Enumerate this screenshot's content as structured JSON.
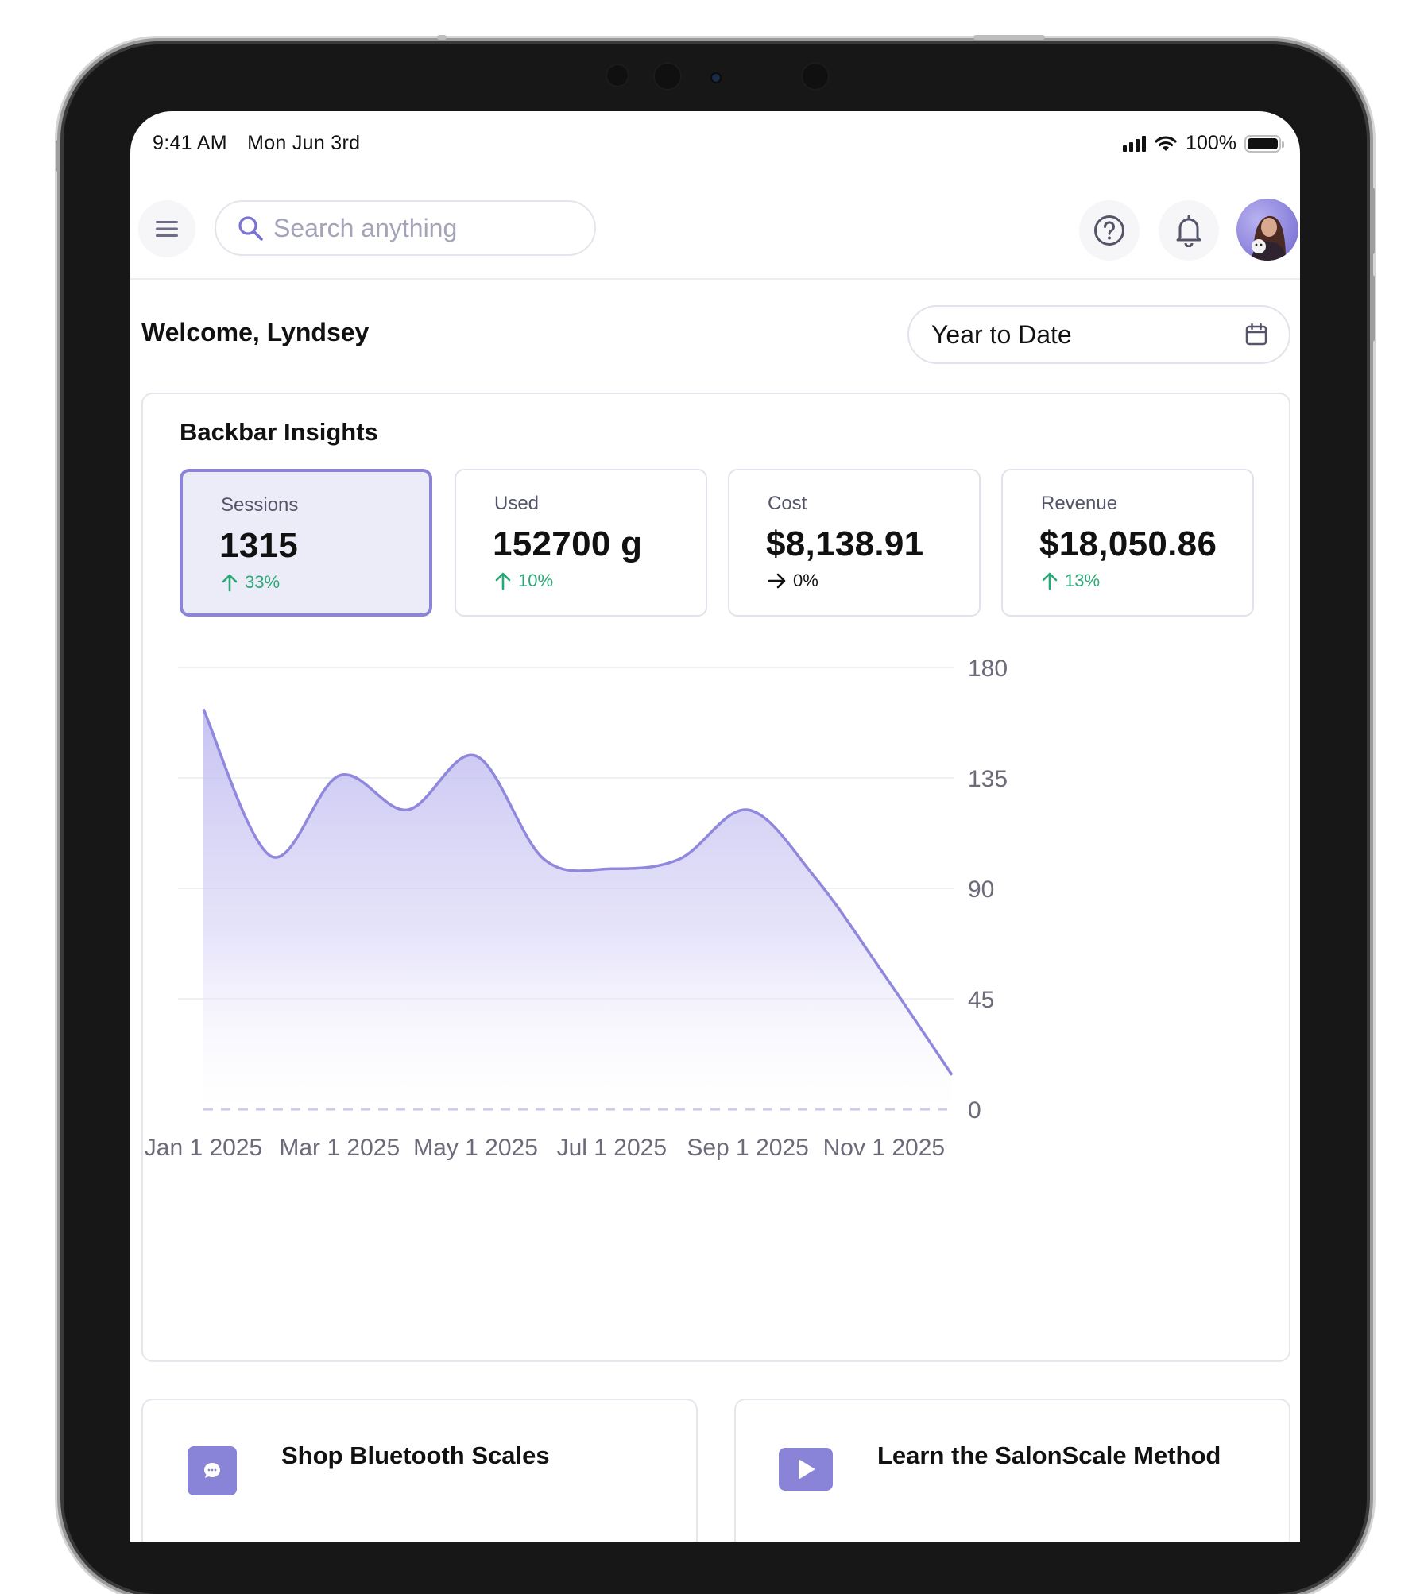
{
  "status_bar": {
    "time": "9:41 AM",
    "date": "Mon Jun 3rd",
    "battery": "100%"
  },
  "toolbar": {
    "search_placeholder": "Search anything",
    "icons": [
      "menu-icon",
      "search-icon",
      "help-icon",
      "bell-icon"
    ]
  },
  "header": {
    "welcome": "Welcome, Lyndsey",
    "date_range": "Year to Date"
  },
  "insights": {
    "title": "Backbar Insights",
    "stats": [
      {
        "label": "Sessions",
        "value": "1315",
        "delta": "33%",
        "trend": "up",
        "active": true
      },
      {
        "label": "Used",
        "value": "152700 g",
        "delta": "10%",
        "trend": "up",
        "active": false
      },
      {
        "label": "Cost",
        "value": "$8,138.91",
        "delta": "0%",
        "trend": "flat",
        "active": false
      },
      {
        "label": "Revenue",
        "value": "$18,050.86",
        "delta": "13%",
        "trend": "up",
        "active": false
      }
    ]
  },
  "chart_data": {
    "type": "area",
    "title": "",
    "xlabel": "",
    "ylabel": "",
    "x_tick_labels": [
      "Jan 1 2025",
      "Mar 1 2025",
      "May 1 2025",
      "Jul 1 2025",
      "Sep 1 2025",
      "Nov 1 2025"
    ],
    "y_tick_labels": [
      "180",
      "135",
      "90",
      "45",
      "0"
    ],
    "ylim": [
      0,
      180
    ],
    "y_axis_side": "right",
    "grid": true,
    "x": [
      "Jan 1 2025",
      "Feb 1 2025",
      "Mar 1 2025",
      "Apr 1 2025",
      "May 1 2025",
      "Jun 1 2025",
      "Jul 1 2025",
      "Aug 1 2025",
      "Sep 1 2025",
      "Oct 1 2025",
      "Nov 1 2025",
      "Dec 1 2025"
    ],
    "series": [
      {
        "values": [
          163,
          103,
          136,
          122,
          144,
          102,
          98,
          102,
          122,
          94,
          55,
          14
        ]
      }
    ],
    "color": "#8f88dc"
  },
  "promos": [
    {
      "title": "Shop Bluetooth Scales",
      "icon": "chat-bubble-icon"
    },
    {
      "title": "Learn the SalonScale Method",
      "icon": "play-icon"
    }
  ],
  "colors": {
    "accent": "#8b84d8",
    "positive": "#2aa876",
    "text": "#111111"
  }
}
